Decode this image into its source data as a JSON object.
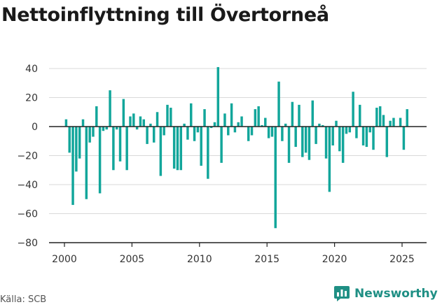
{
  "title": "Nettoinflyttning till Övertorneå",
  "source": "Källa: SCB",
  "brand": "Newsworthy",
  "colors": {
    "bar": "#12a69b",
    "grid": "#d9d9d9",
    "zero_line": "#222222",
    "text": "#333333",
    "brand": "#1f8f84"
  },
  "chart_data": {
    "type": "bar",
    "title": "Nettoinflyttning till Övertorneå",
    "xlabel": "",
    "ylabel": "",
    "frequency": "quarterly",
    "ylim": [
      -80,
      40
    ],
    "yticks": [
      40,
      20,
      0,
      -20,
      -40,
      -60,
      -80
    ],
    "xticks": [
      2000,
      2005,
      2010,
      2015,
      2020,
      2025
    ],
    "grid": true,
    "series": [
      {
        "values": [
          5,
          -18,
          -54,
          -31,
          -22,
          5,
          -50,
          -11,
          -7,
          14,
          -46,
          -3,
          -2,
          25,
          -30,
          -2,
          -24,
          19,
          -30,
          7,
          9,
          -2,
          7,
          5,
          -12,
          2,
          -11,
          10,
          -34,
          -6,
          15,
          13,
          -29,
          -30,
          -30,
          2,
          -9,
          16,
          -10,
          -4,
          -27,
          12,
          -36,
          -1,
          3,
          41,
          -25,
          9,
          -6,
          16,
          -4,
          3,
          7,
          0,
          -10,
          -6,
          12,
          14,
          1,
          6,
          -8,
          -7,
          -70,
          31,
          -10,
          2,
          -25,
          17,
          -14,
          15,
          -21,
          -18,
          -23,
          18,
          -12,
          2,
          1,
          -22,
          -45,
          -13,
          4,
          -17,
          -25,
          -5,
          -4,
          24,
          -8,
          15,
          -13,
          -14,
          -4,
          -16,
          13,
          14,
          8,
          -21,
          4,
          6,
          0,
          6,
          -16,
          12
        ]
      }
    ]
  }
}
